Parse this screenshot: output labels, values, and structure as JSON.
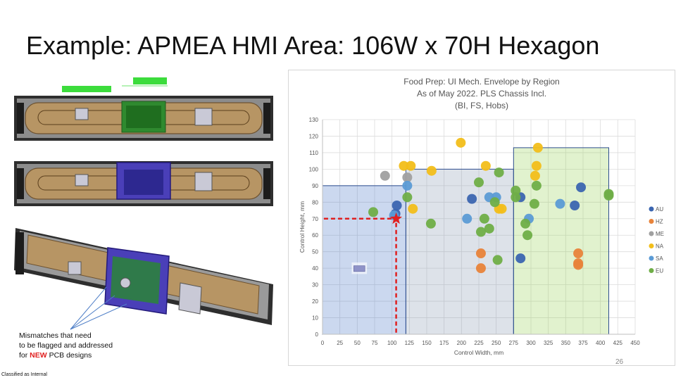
{
  "slide": {
    "title": "Example: APMEA HMI Area: 106W x 70H Hexagon",
    "caption_line1": "Mismatches that need",
    "caption_line2": "to be flagged and addressed",
    "caption_line3_pre": "for ",
    "caption_line3_highlight": "NEW",
    "caption_line3_post": " PCB designs",
    "classification": "Classified as Internal",
    "page_number": "26"
  },
  "colors": {
    "AU": "#3b65b0",
    "HZ": "#e8833a",
    "ME": "#a0a0a0",
    "NA": "#f2be1a",
    "SA": "#5b9bd5",
    "EU": "#6fae47",
    "marker": "#e02020"
  },
  "chart_data": {
    "type": "scatter",
    "title_lines": [
      "Food Prep: UI Mech. Envelope by Region",
      "As of May 2022.  PLS Chassis Incl.",
      "(BI, FS, Hobs)"
    ],
    "xlabel": "Control Width, mm",
    "ylabel": "Control Height, mm",
    "xlim": [
      0,
      450
    ],
    "ylim": [
      0,
      130
    ],
    "x_ticks": [
      0,
      25,
      50,
      75,
      100,
      125,
      150,
      175,
      200,
      225,
      250,
      275,
      300,
      325,
      350,
      375,
      400,
      425,
      450
    ],
    "y_ticks": [
      0,
      10,
      20,
      30,
      40,
      50,
      60,
      70,
      80,
      90,
      100,
      110,
      120,
      130
    ],
    "grid": true,
    "legend_position": "right",
    "envelopes": [
      {
        "x": [
          0,
          120
        ],
        "y": [
          0,
          90
        ],
        "color": "#4472c4"
      },
      {
        "x": [
          120,
          275
        ],
        "y": [
          0,
          100
        ],
        "color": "#8497b0"
      },
      {
        "x": [
          275,
          412
        ],
        "y": [
          0,
          113
        ],
        "color": "#92d050"
      }
    ],
    "target": {
      "x": 106,
      "y": 70
    },
    "series": [
      {
        "name": "AU",
        "points": [
          [
            107,
            78
          ],
          [
            105,
            73
          ],
          [
            215,
            82
          ],
          [
            285,
            83
          ],
          [
            285,
            46
          ],
          [
            363,
            78
          ],
          [
            372,
            89
          ]
        ]
      },
      {
        "name": "HZ",
        "points": [
          [
            228,
            49
          ],
          [
            228,
            40
          ],
          [
            368,
            49
          ],
          [
            368,
            43
          ],
          [
            368,
            42
          ]
        ]
      },
      {
        "name": "ME",
        "points": [
          [
            90,
            96
          ],
          [
            122,
            95
          ]
        ]
      },
      {
        "name": "NA",
        "points": [
          [
            117,
            102
          ],
          [
            127,
            102
          ],
          [
            130,
            76
          ],
          [
            157,
            99
          ],
          [
            199,
            116
          ],
          [
            235,
            102
          ],
          [
            258,
            76
          ],
          [
            254,
            76
          ],
          [
            306,
            96
          ],
          [
            308,
            102
          ],
          [
            310,
            113
          ]
        ]
      },
      {
        "name": "SA",
        "points": [
          [
            122,
            90
          ],
          [
            208,
            70
          ],
          [
            240,
            83
          ],
          [
            250,
            83
          ],
          [
            297,
            70
          ],
          [
            342,
            79
          ],
          [
            103,
            72
          ]
        ]
      },
      {
        "name": "EU",
        "points": [
          [
            73,
            74
          ],
          [
            122,
            83
          ],
          [
            156,
            67
          ],
          [
            225,
            92
          ],
          [
            228,
            62
          ],
          [
            233,
            70
          ],
          [
            240,
            64
          ],
          [
            248,
            80
          ],
          [
            252,
            45
          ],
          [
            254,
            98
          ],
          [
            278,
            87
          ],
          [
            278,
            83
          ],
          [
            292,
            67
          ],
          [
            295,
            60
          ],
          [
            305,
            79
          ],
          [
            308,
            90
          ],
          [
            412,
            84
          ],
          [
            412,
            85
          ]
        ]
      }
    ]
  }
}
